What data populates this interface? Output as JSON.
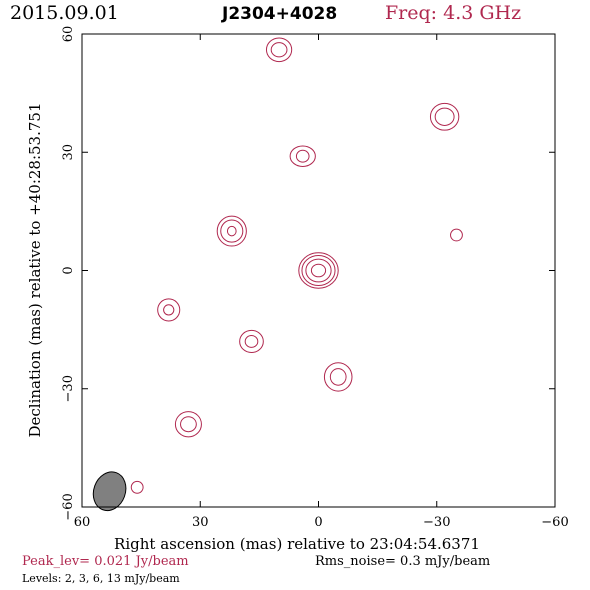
{
  "header": {
    "date": "2015.09.01",
    "source": "J2304+4028",
    "freq_label": "Freq:",
    "freq_value": "4.3 GHz"
  },
  "footer": {
    "peak_label": "Peak_lev=",
    "peak_value": "0.021 Jy/beam",
    "rms_label": "Rms_noise=",
    "rms_value": "0.3 mJy/beam",
    "levels_label": "Levels:",
    "levels_values": "2,   3,   6,  13 mJy/beam"
  },
  "colors": {
    "contour": "#b0284f",
    "beam_fill": "#808080",
    "axes": "#000000"
  },
  "chart_data": {
    "type": "contour",
    "xlabel": "Right ascension (mas) relative to 23:04:54.6371",
    "ylabel": "Declination (mas) relative to +40:28:53.751",
    "xlim": [
      60,
      -60
    ],
    "ylim": [
      -60,
      60
    ],
    "xticks": [
      60,
      30,
      0,
      -30,
      -60
    ],
    "yticks": [
      -60,
      -30,
      0,
      30,
      60
    ],
    "contour_levels_mJy": [
      2,
      3,
      6,
      13
    ],
    "peak_Jy_per_beam": 0.021,
    "rms_mJy_per_beam": 0.3,
    "beam": {
      "x": 53,
      "y": -56,
      "major": 5,
      "minor": 4
    },
    "components": [
      {
        "x": 0,
        "y": 0,
        "rings": [
          [
            5,
            4.5
          ],
          [
            4.2,
            3.8
          ],
          [
            3.2,
            2.9
          ],
          [
            1.8,
            1.6
          ]
        ]
      },
      {
        "x": 22,
        "y": 10,
        "rings": [
          [
            3.7,
            3.8
          ],
          [
            2.8,
            2.8
          ],
          [
            1.1,
            1.2
          ]
        ]
      },
      {
        "x": 10,
        "y": 56,
        "rings": [
          [
            3.2,
            3.0
          ],
          [
            2.0,
            1.8
          ]
        ]
      },
      {
        "x": -32,
        "y": 39,
        "rings": [
          [
            3.6,
            3.4
          ],
          [
            2.4,
            2.2
          ]
        ]
      },
      {
        "x": 4,
        "y": 29,
        "rings": [
          [
            3.2,
            2.6
          ],
          [
            1.6,
            1.5
          ]
        ]
      },
      {
        "x": -35,
        "y": 9,
        "rings": [
          [
            1.5,
            1.5
          ]
        ]
      },
      {
        "x": 38,
        "y": -10,
        "rings": [
          [
            2.8,
            2.8
          ],
          [
            1.3,
            1.3
          ]
        ]
      },
      {
        "x": 17,
        "y": -18,
        "rings": [
          [
            3.0,
            2.8
          ],
          [
            1.6,
            1.5
          ]
        ]
      },
      {
        "x": -5,
        "y": -27,
        "rings": [
          [
            3.5,
            3.6
          ],
          [
            2.0,
            2.1
          ]
        ]
      },
      {
        "x": 33,
        "y": -39,
        "rings": [
          [
            3.3,
            3.2
          ],
          [
            2.0,
            1.9
          ]
        ]
      },
      {
        "x": 46,
        "y": -55,
        "rings": [
          [
            1.5,
            1.5
          ]
        ]
      }
    ]
  }
}
